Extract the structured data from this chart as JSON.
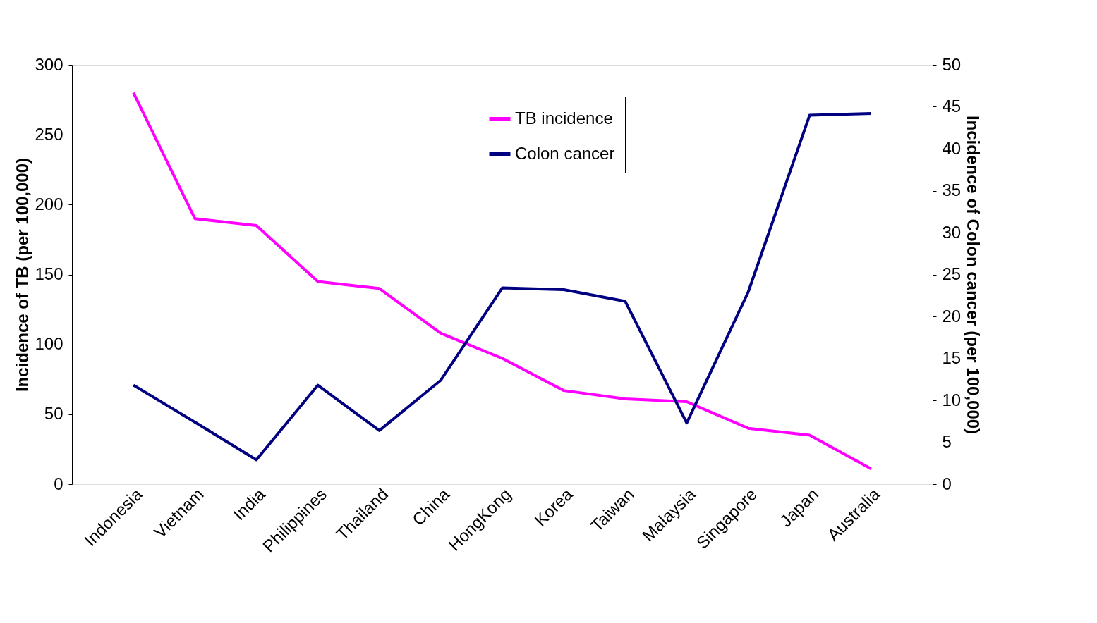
{
  "chart_data": {
    "type": "line",
    "ylabel": "Incidence of TB (per 100,000)",
    "y2label": "Incidence of Colon cancer (per 100,000)",
    "categories": [
      "Indonesia",
      "Vietnam",
      "India",
      "Philippines",
      "Thailand",
      "China",
      "HongKong",
      "Korea",
      "Taiwan",
      "Malaysia",
      "Singapore",
      "Japan",
      "Australia"
    ],
    "series": [
      {
        "name": "TB incidence",
        "color": "#ff00ff",
        "values": [
          280,
          190,
          185,
          145,
          140,
          108,
          90,
          67,
          61,
          59,
          40,
          35,
          11
        ]
      },
      {
        "name": "Colon cancer",
        "color": "#000080",
        "axis": "y2",
        "values": [
          11.8,
          7.4,
          2.9,
          11.8,
          6.4,
          12.4,
          23.4,
          23.2,
          21.8,
          7.3,
          22.9,
          44.0,
          44.2
        ]
      }
    ],
    "ylim": [
      0,
      300
    ],
    "yticks": [
      0,
      50,
      100,
      150,
      200,
      250,
      300
    ],
    "y2lim": [
      0,
      50
    ],
    "y2ticks": [
      0,
      5,
      10,
      15,
      20,
      25,
      30,
      35,
      40,
      45,
      50
    ],
    "grid": false,
    "legend": "top right",
    "marker": "none",
    "line_style": "solid"
  }
}
